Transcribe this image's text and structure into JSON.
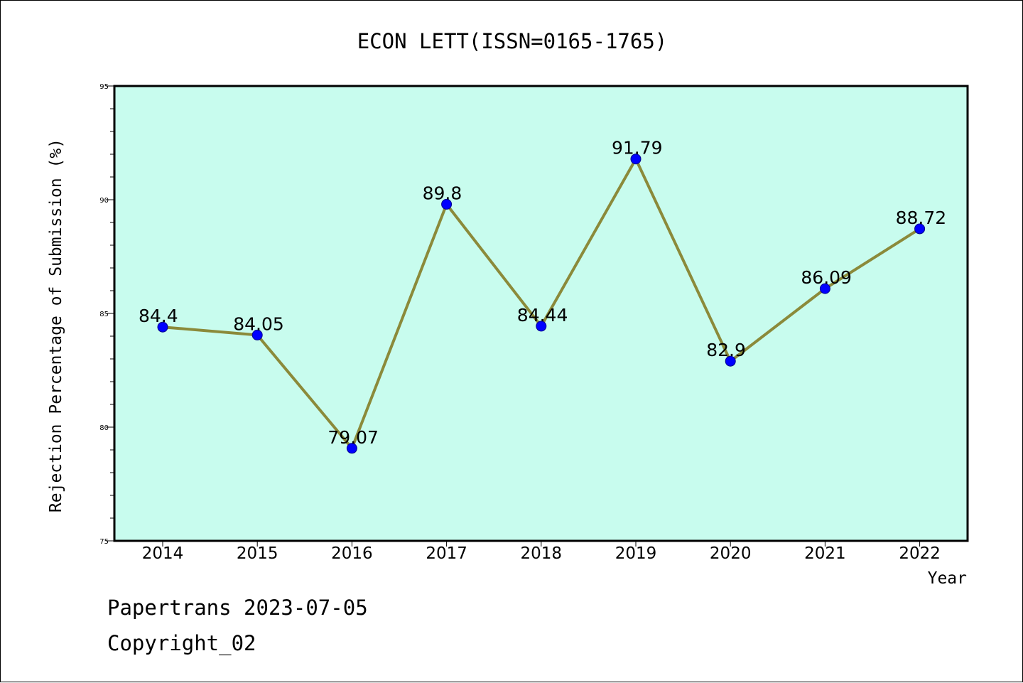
{
  "footer": {
    "line1": "Papertrans 2023-07-05",
    "line2": "Copyright_02"
  },
  "colors": {
    "plot_background": "#c8fcee",
    "line": "#8b8a3a",
    "marker": "#0000ff",
    "marker_edge": "#00008b",
    "axes": "#000000"
  },
  "chart_data": {
    "type": "line",
    "title": "ECON LETT(ISSN=0165-1765)",
    "xlabel": "Year",
    "ylabel": "Rejection Percentage of Submission (%)",
    "categories": [
      "2014",
      "2015",
      "2016",
      "2017",
      "2018",
      "2019",
      "2020",
      "2021",
      "2022"
    ],
    "series": [
      {
        "values": [
          84.4,
          84.05,
          79.07,
          89.8,
          84.44,
          91.79,
          82.9,
          86.09,
          88.72
        ],
        "data_labels": [
          "84.4",
          "84.05",
          "79.07",
          "89.8",
          "84.44",
          "91.79",
          "82.9",
          "86.09",
          "88.72"
        ]
      }
    ],
    "ylim": [
      75,
      95
    ],
    "yticks": [
      "75",
      "80",
      "85",
      "90",
      "95"
    ],
    "grid": false,
    "legend": "none"
  }
}
